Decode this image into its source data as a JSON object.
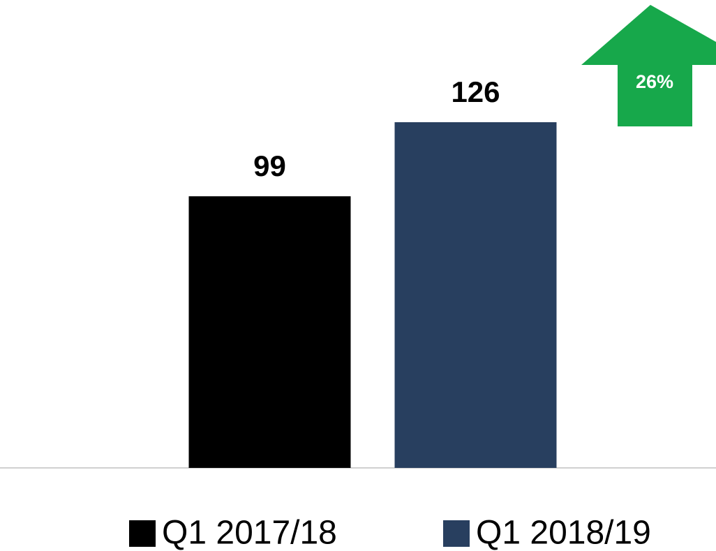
{
  "chart_data": {
    "type": "bar",
    "categories": [
      null
    ],
    "series": [
      {
        "name": "Q1 2017/18",
        "color": "#000000",
        "values": [
          99
        ]
      },
      {
        "name": "Q1 2018/19",
        "color": "#283f5f",
        "values": [
          126
        ]
      }
    ],
    "ylim": [
      0,
      140
    ],
    "annotation": "26%",
    "annotation_color": "#17a84b",
    "legend": "bottom"
  }
}
